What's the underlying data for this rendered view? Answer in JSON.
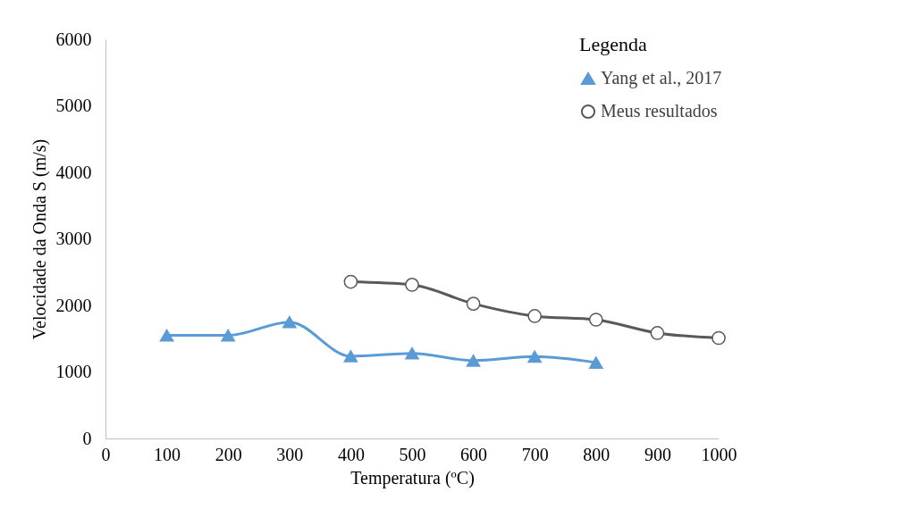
{
  "chart_data": {
    "type": "line",
    "xlabel": "Temperatura (ºC)",
    "ylabel": "Velocidade da Onda S (m/s)",
    "legend_title": "Legenda",
    "legend": "top right",
    "grid": false,
    "line_style": "solid",
    "xlim": [
      0,
      1000
    ],
    "xticks": [
      0,
      100,
      200,
      300,
      400,
      500,
      600,
      700,
      800,
      900,
      1000
    ],
    "ylim": [
      0,
      6000
    ],
    "yticks": [
      0,
      1000,
      2000,
      3000,
      4000,
      5000,
      6000
    ],
    "series": [
      {
        "name": "Yang et al., 2017",
        "color": "#5b9bd5",
        "marker": "triangle",
        "x": [
          100,
          200,
          300,
          400,
          500,
          600,
          700,
          800
        ],
        "values": [
          1550,
          1550,
          1750,
          1235,
          1280,
          1170,
          1230,
          1140
        ]
      },
      {
        "name": "Meus resultados",
        "color": "#595959",
        "marker": "circle",
        "x": [
          400,
          500,
          600,
          700,
          800,
          900,
          1000
        ],
        "values": [
          2355,
          2310,
          2025,
          1840,
          1785,
          1585,
          1510
        ]
      }
    ]
  }
}
